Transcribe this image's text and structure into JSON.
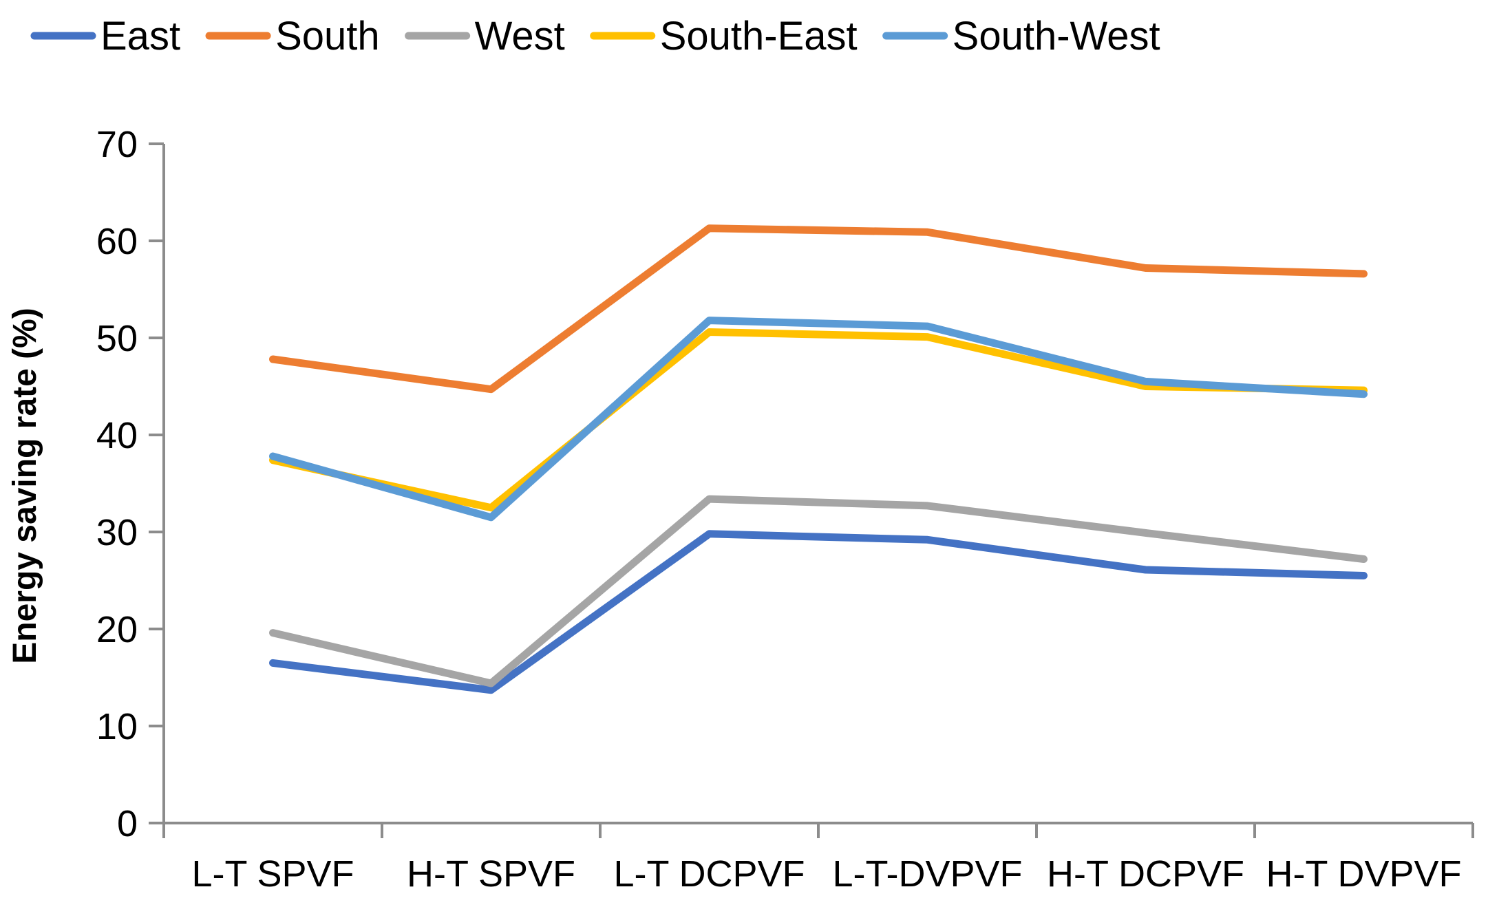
{
  "chart_data": {
    "type": "line",
    "title": "",
    "xlabel": "",
    "ylabel": "Energy saving rate (%)",
    "ylim": [
      0,
      70
    ],
    "yticks": [
      0,
      10,
      20,
      30,
      40,
      50,
      60,
      70
    ],
    "grid": false,
    "legend_position": "top",
    "categories": [
      "L-T SPVF",
      "H-T SPVF",
      "L-T DCPVF",
      "L-T-DVPVF",
      "H-T DCPVF",
      "H-T DVPVF"
    ],
    "series": [
      {
        "name": "East",
        "color": "#4472C4",
        "values": [
          16.5,
          13.7,
          29.8,
          29.2,
          26.1,
          25.5
        ]
      },
      {
        "name": "South",
        "color": "#ED7D31",
        "values": [
          47.8,
          44.7,
          61.3,
          60.9,
          57.2,
          56.6
        ]
      },
      {
        "name": "West",
        "color": "#A5A5A5",
        "values": [
          19.6,
          14.4,
          33.4,
          32.7,
          29.9,
          27.2
        ]
      },
      {
        "name": "South-East",
        "color": "#FFC000",
        "values": [
          37.4,
          32.5,
          50.6,
          50.1,
          45.0,
          44.6
        ]
      },
      {
        "name": "South-West",
        "color": "#5B9BD5",
        "values": [
          37.8,
          31.5,
          51.8,
          51.2,
          45.5,
          44.2
        ]
      }
    ]
  }
}
